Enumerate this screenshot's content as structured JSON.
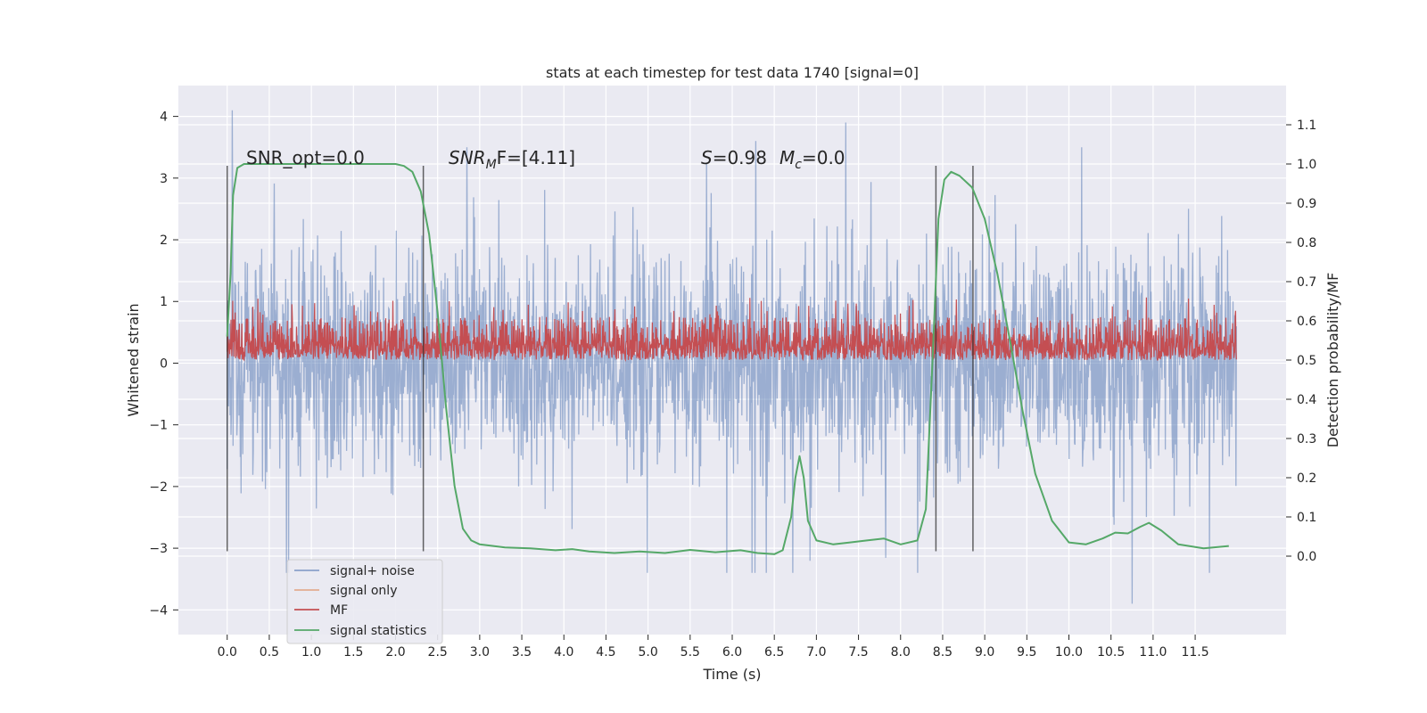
{
  "chart_data": {
    "type": "line",
    "title": "stats at each timestep for test data 1740 [signal=0]",
    "xlabel": "Time (s)",
    "ylabel_left": "Whitened strain",
    "ylabel_right": "Detection probability/MF",
    "xlim": [
      -0.58,
      12.58
    ],
    "ylim_left": [
      -4.4,
      4.5
    ],
    "ylim_right": [
      -0.2,
      1.2
    ],
    "x_ticks": [
      "0.0",
      "0.5",
      "1.0",
      "1.5",
      "2.0",
      "2.5",
      "3.0",
      "3.5",
      "4.0",
      "4.5",
      "5.0",
      "5.5",
      "6.0",
      "6.5",
      "7.0",
      "7.5",
      "8.0",
      "8.5",
      "9.0",
      "9.5",
      "10.0",
      "10.5",
      "11.0",
      "11.5"
    ],
    "y_ticks_left": [
      "−4",
      "−3",
      "−2",
      "−1",
      "0",
      "1",
      "2",
      "3",
      "4"
    ],
    "y_ticks_right": [
      "0.0",
      "0.1",
      "0.2",
      "0.3",
      "0.4",
      "0.5",
      "0.6",
      "0.7",
      "0.8",
      "0.9",
      "1.0",
      "1.1"
    ],
    "grid": true,
    "legend_position": "lower-left",
    "colors": {
      "background": "#eaeaf2",
      "signal_noise": "#4c72b0",
      "signal_only": "#dd8452",
      "mf": "#c44e52",
      "statistics": "#55a868",
      "markers": "#333333"
    },
    "annotations": {
      "snr_opt": "SNR_opt=0.0",
      "snr_mf_base": "SNR",
      "snr_mf_sub": "M",
      "snr_mf_rest": "F=[4.11]",
      "s_var": "S",
      "s_val": "=0.98",
      "mc_var": "M",
      "mc_sub": "c",
      "mc_val": "=0.0"
    },
    "vertical_markers": [
      0.0,
      2.33,
      8.42,
      8.86
    ],
    "marker_range": [
      -3.05,
      3.2
    ],
    "series": [
      {
        "name": "signal+ noise",
        "axis": "left",
        "description_range": [
          -3.9,
          4.1
        ],
        "x_range": [
          0.0,
          11.99
        ],
        "peaks": [
          [
            0.06,
            4.1
          ],
          [
            2.85,
            3.5
          ],
          [
            7.35,
            3.9
          ],
          [
            10.15,
            3.5
          ],
          [
            10.75,
            -3.9
          ]
        ],
        "typical_envelope": [
          -2.6,
          2.6
        ]
      },
      {
        "name": "signal only",
        "axis": "left",
        "values": []
      },
      {
        "name": "MF",
        "axis": "right",
        "x_range": [
          0.0,
          11.99
        ],
        "typical_range": [
          0.5,
          0.61
        ],
        "peak": 0.66
      },
      {
        "name": "signal statistics",
        "axis": "right",
        "points": [
          [
            0.0,
            0.56
          ],
          [
            0.04,
            0.72
          ],
          [
            0.07,
            0.92
          ],
          [
            0.12,
            0.99
          ],
          [
            0.2,
            1.0
          ],
          [
            0.5,
            1.0
          ],
          [
            1.0,
            1.0
          ],
          [
            1.5,
            1.0
          ],
          [
            2.0,
            1.0
          ],
          [
            2.1,
            0.995
          ],
          [
            2.2,
            0.98
          ],
          [
            2.3,
            0.93
          ],
          [
            2.4,
            0.82
          ],
          [
            2.5,
            0.62
          ],
          [
            2.6,
            0.38
          ],
          [
            2.7,
            0.18
          ],
          [
            2.8,
            0.07
          ],
          [
            2.9,
            0.04
          ],
          [
            3.0,
            0.03
          ],
          [
            3.3,
            0.022
          ],
          [
            3.6,
            0.02
          ],
          [
            3.9,
            0.015
          ],
          [
            4.1,
            0.018
          ],
          [
            4.3,
            0.012
          ],
          [
            4.6,
            0.008
          ],
          [
            4.9,
            0.012
          ],
          [
            5.2,
            0.008
          ],
          [
            5.5,
            0.016
          ],
          [
            5.8,
            0.01
          ],
          [
            6.1,
            0.015
          ],
          [
            6.3,
            0.008
          ],
          [
            6.5,
            0.005
          ],
          [
            6.6,
            0.015
          ],
          [
            6.7,
            0.1
          ],
          [
            6.75,
            0.2
          ],
          [
            6.8,
            0.255
          ],
          [
            6.85,
            0.2
          ],
          [
            6.9,
            0.09
          ],
          [
            7.0,
            0.04
          ],
          [
            7.2,
            0.03
          ],
          [
            7.4,
            0.035
          ],
          [
            7.6,
            0.04
          ],
          [
            7.8,
            0.045
          ],
          [
            8.0,
            0.03
          ],
          [
            8.2,
            0.04
          ],
          [
            8.3,
            0.12
          ],
          [
            8.38,
            0.5
          ],
          [
            8.45,
            0.86
          ],
          [
            8.52,
            0.96
          ],
          [
            8.6,
            0.98
          ],
          [
            8.7,
            0.97
          ],
          [
            8.85,
            0.94
          ],
          [
            9.0,
            0.86
          ],
          [
            9.15,
            0.72
          ],
          [
            9.3,
            0.55
          ],
          [
            9.45,
            0.37
          ],
          [
            9.6,
            0.21
          ],
          [
            9.8,
            0.09
          ],
          [
            10.0,
            0.035
          ],
          [
            10.2,
            0.03
          ],
          [
            10.4,
            0.045
          ],
          [
            10.55,
            0.06
          ],
          [
            10.7,
            0.058
          ],
          [
            10.85,
            0.075
          ],
          [
            10.95,
            0.085
          ],
          [
            11.1,
            0.065
          ],
          [
            11.3,
            0.03
          ],
          [
            11.6,
            0.02
          ],
          [
            11.9,
            0.026
          ]
        ]
      }
    ]
  }
}
